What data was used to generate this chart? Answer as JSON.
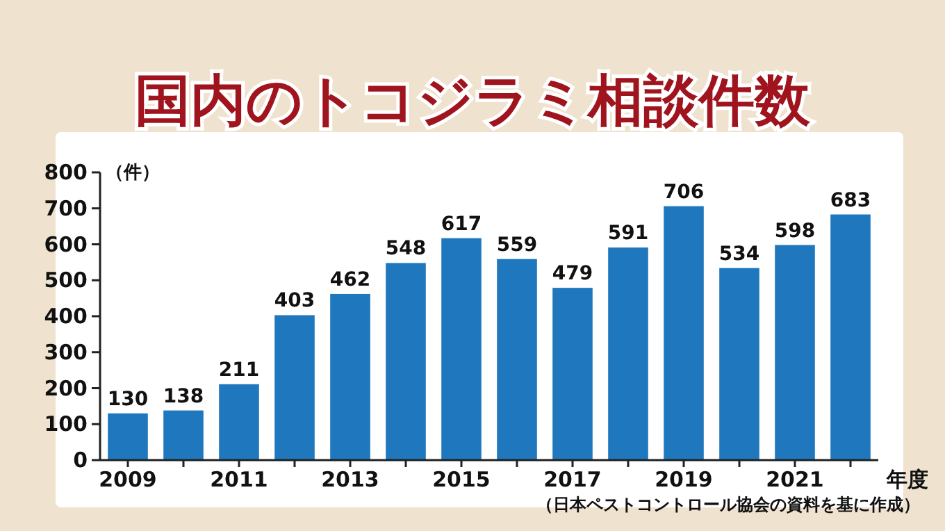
{
  "chart_data": {
    "type": "bar",
    "title": "国内のトコジラミ相談件数",
    "ylabel": "（件）",
    "xlabel": "年度",
    "annotations": [
      "（日本ペストコントロール協会の資料を基に作成）"
    ],
    "categories": [
      "2009",
      null,
      "2011",
      null,
      "2013",
      null,
      "2015",
      null,
      "2017",
      null,
      "2019",
      null,
      "2021",
      null
    ],
    "values": [
      130,
      138,
      211,
      403,
      462,
      548,
      617,
      559,
      479,
      591,
      706,
      534,
      598,
      683
    ],
    "color": "#1f78bd",
    "ylim": [
      0,
      800
    ],
    "yticks": [
      0,
      100,
      200,
      300,
      400,
      500,
      600,
      700,
      800
    ],
    "data_labels": true
  }
}
